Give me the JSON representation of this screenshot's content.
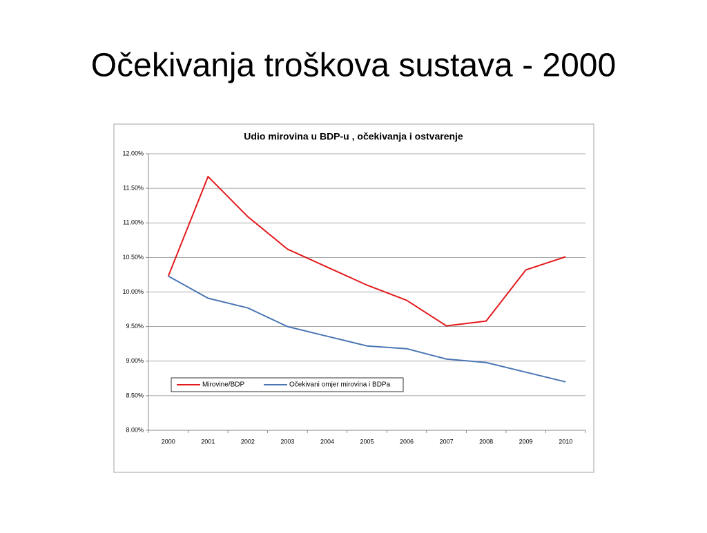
{
  "title": "Očekivanja troškova sustava - 2000",
  "chart_data": {
    "type": "line",
    "title": "Udio mirovina u BDP-u , očekivanja i ostvarenje",
    "categories": [
      "2000",
      "2001",
      "2002",
      "2003",
      "2004",
      "2005",
      "2006",
      "2007",
      "2008",
      "2009",
      "2010"
    ],
    "series": [
      {
        "name": "Mirovine/BDP",
        "color": "#e31a1c",
        "values": [
          10.23,
          11.67,
          11.09,
          10.62,
          10.36,
          10.1,
          9.88,
          9.51,
          9.58,
          10.32,
          10.51
        ]
      },
      {
        "name": "Očekivani omjer mirovina i BDPa",
        "color": "#4a76b4",
        "values": [
          10.23,
          9.91,
          9.77,
          9.5,
          9.36,
          9.22,
          9.18,
          9.03,
          8.98,
          8.84,
          8.7
        ]
      }
    ],
    "ylim": [
      8,
      12
    ],
    "yticks": [
      {
        "value": 8,
        "label": "8.00%"
      },
      {
        "value": 8.5,
        "label": "8.50%"
      },
      {
        "value": 9,
        "label": "9.00%"
      },
      {
        "value": 9.5,
        "label": "9.50%"
      },
      {
        "value": 10,
        "label": "10.00%"
      },
      {
        "value": 10.5,
        "label": "10.50%"
      },
      {
        "value": 11,
        "label": "11.00%"
      },
      {
        "value": 11.5,
        "label": "11.50%"
      },
      {
        "value": 12,
        "label": "12.00%"
      }
    ],
    "grid": true,
    "legend": "lower-left"
  }
}
